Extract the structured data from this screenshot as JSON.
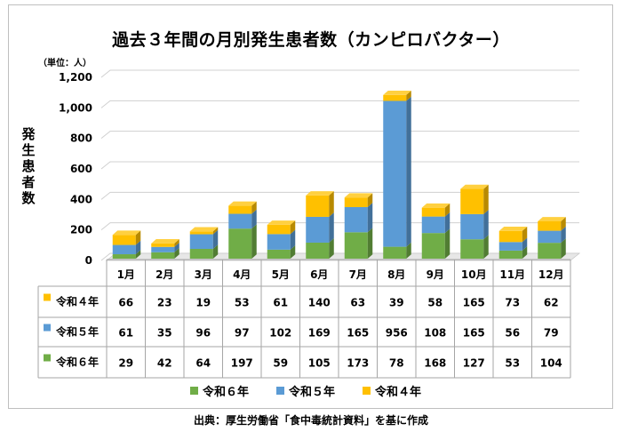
{
  "chart_data": {
    "type": "bar",
    "stacked": true,
    "title": "過去３年間の月別発生患者数（カンピロバクター）",
    "unit_label": "（単位：人）",
    "ylabel": "発生患者数",
    "ylim": [
      0,
      1200
    ],
    "yticks": [
      "0",
      "200",
      "400",
      "600",
      "800",
      "1,000",
      "1,200"
    ],
    "grid": true,
    "categories": [
      "1月",
      "2月",
      "3月",
      "4月",
      "5月",
      "6月",
      "7月",
      "8月",
      "9月",
      "10月",
      "11月",
      "12月"
    ],
    "series": [
      {
        "name": "令和６年",
        "color": "#70ad47",
        "values": [
          29,
          42,
          64,
          197,
          59,
          105,
          173,
          78,
          168,
          127,
          53,
          104
        ]
      },
      {
        "name": "令和５年",
        "color": "#5b9bd5",
        "values": [
          61,
          35,
          96,
          97,
          102,
          169,
          165,
          956,
          108,
          165,
          56,
          79
        ]
      },
      {
        "name": "令和４年",
        "color": "#ffc000",
        "values": [
          66,
          23,
          19,
          53,
          61,
          140,
          63,
          39,
          58,
          165,
          73,
          62
        ]
      }
    ],
    "table_row_order": [
      "令和４年",
      "令和５年",
      "令和６年"
    ],
    "legend_position": "bottom",
    "source": "出典：厚生労働省「食中毒統計資料」を基に作成"
  }
}
